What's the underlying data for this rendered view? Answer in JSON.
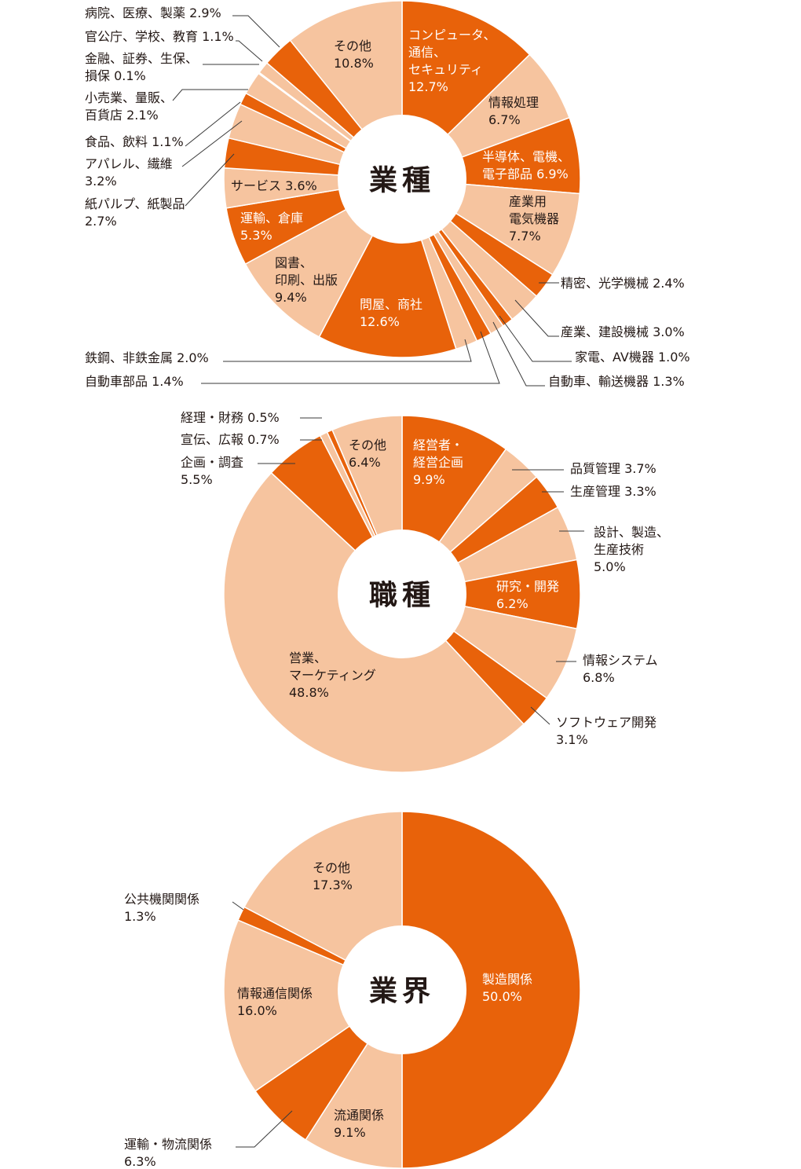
{
  "colors": {
    "dark": "#E8620A",
    "light": "#F6C49F",
    "text_dark": "#231815",
    "text_light": "#ffffff",
    "line": "#3a3a3a"
  },
  "chart_data": [
    {
      "type": "pie",
      "donut": true,
      "title": "業種",
      "start": "top",
      "direction": "clockwise",
      "slices": [
        {
          "label": "コンピュータ、通信、セキュリティ",
          "value": 12.7,
          "shade": "dark",
          "lines": [
            "コンピュータ、",
            "通信、",
            "セキュリティ",
            "12.7%"
          ]
        },
        {
          "label": "情報処理",
          "value": 6.7,
          "shade": "light",
          "lines": [
            "情報処理",
            "6.7%"
          ]
        },
        {
          "label": "半導体、電機、電子部品",
          "value": 6.9,
          "shade": "dark",
          "lines": [
            "半導体、電機、",
            "電子部品 6.9%"
          ]
        },
        {
          "label": "産業用電気機器",
          "value": 7.7,
          "shade": "light",
          "lines": [
            "産業用",
            "電気機器",
            "7.7%"
          ]
        },
        {
          "label": "精密、光学機械",
          "value": 2.4,
          "shade": "dark",
          "lines": [
            "精密、光学機械 2.4%"
          ]
        },
        {
          "label": "産業、建設機械",
          "value": 3.0,
          "shade": "light",
          "lines": [
            "産業、建設機械 3.0%"
          ]
        },
        {
          "label": "家電、AV機器",
          "value": 1.0,
          "shade": "dark",
          "lines": [
            "家電、AV機器 1.0%"
          ]
        },
        {
          "label": "自動車、輸送機器",
          "value": 1.3,
          "shade": "light",
          "lines": [
            "自動車、輸送機器 1.3%"
          ]
        },
        {
          "label": "自動車部品",
          "value": 1.4,
          "shade": "dark",
          "lines": [
            "自動車部品 1.4%"
          ]
        },
        {
          "label": "鉄鋼、非鉄金属",
          "value": 2.0,
          "shade": "light",
          "lines": [
            "鉄鋼、非鉄金属 2.0%"
          ]
        },
        {
          "label": "問屋、商社",
          "value": 12.6,
          "shade": "dark",
          "lines": [
            "問屋、商社",
            "12.6%"
          ]
        },
        {
          "label": "図書、印刷、出版",
          "value": 9.4,
          "shade": "light",
          "lines": [
            "図書、",
            "印刷、出版",
            "9.4%"
          ]
        },
        {
          "label": "運輸、倉庫",
          "value": 5.3,
          "shade": "dark",
          "lines": [
            "運輸、倉庫",
            "5.3%"
          ]
        },
        {
          "label": "サービス",
          "value": 3.6,
          "shade": "light",
          "lines": [
            "サービス 3.6%"
          ]
        },
        {
          "label": "紙パルプ、紙製品",
          "value": 2.7,
          "shade": "dark",
          "lines": [
            "紙パルプ、紙製品",
            "2.7%"
          ]
        },
        {
          "label": "アパレル、繊維",
          "value": 3.2,
          "shade": "light",
          "lines": [
            "アパレル、繊維",
            "3.2%"
          ]
        },
        {
          "label": "食品、飲料",
          "value": 1.1,
          "shade": "dark",
          "lines": [
            "食品、飲料 1.1%"
          ]
        },
        {
          "label": "小売業、量販、百貨店",
          "value": 2.1,
          "shade": "light",
          "lines": [
            "小売業、量販、",
            "百貨店 2.1%"
          ]
        },
        {
          "label": "金融、証券、生保、損保",
          "value": 0.1,
          "shade": "dark",
          "lines": [
            "金融、証券、生保、",
            "損保 0.1%"
          ]
        },
        {
          "label": "官公庁、学校、教育",
          "value": 1.1,
          "shade": "light",
          "lines": [
            "官公庁、学校、教育 1.1%"
          ]
        },
        {
          "label": "病院、医療、製薬",
          "value": 2.9,
          "shade": "dark",
          "lines": [
            "病院、医療、製薬 2.9%"
          ]
        },
        {
          "label": "その他",
          "value": 10.8,
          "shade": "light",
          "lines": [
            "その他",
            "10.8%"
          ]
        }
      ]
    },
    {
      "type": "pie",
      "donut": true,
      "title": "職種",
      "start": "top",
      "direction": "clockwise",
      "slices": [
        {
          "label": "経営者・経営企画",
          "value": 9.9,
          "shade": "dark",
          "lines": [
            "経営者・",
            "経営企画",
            "9.9%"
          ]
        },
        {
          "label": "品質管理",
          "value": 3.7,
          "shade": "light",
          "lines": [
            "品質管理  3.7%"
          ]
        },
        {
          "label": "生産管理",
          "value": 3.3,
          "shade": "dark",
          "lines": [
            "生産管理  3.3%"
          ]
        },
        {
          "label": "設計、製造、生産技術",
          "value": 5.0,
          "shade": "light",
          "lines": [
            "設計、製造、",
            "生産技術",
            "5.0%"
          ]
        },
        {
          "label": "研究・開発",
          "value": 6.2,
          "shade": "dark",
          "lines": [
            "研究・開発",
            "6.2%"
          ]
        },
        {
          "label": "情報システム",
          "value": 6.8,
          "shade": "light",
          "lines": [
            "情報システム",
            "6.8%"
          ]
        },
        {
          "label": "ソフトウェア開発",
          "value": 3.1,
          "shade": "dark",
          "lines": [
            "ソフトウェア開発",
            "3.1%"
          ]
        },
        {
          "label": "営業、マーケティング",
          "value": 48.8,
          "shade": "light",
          "lines": [
            "営業、",
            "マーケティング",
            "48.8%"
          ]
        },
        {
          "label": "企画・調査",
          "value": 5.5,
          "shade": "dark",
          "lines": [
            "企画・調査",
            "5.5%"
          ]
        },
        {
          "label": "宣伝、広報",
          "value": 0.7,
          "shade": "light",
          "lines": [
            "宣伝、広報  0.7%"
          ]
        },
        {
          "label": "経理・財務",
          "value": 0.5,
          "shade": "dark",
          "lines": [
            "経理・財務  0.5%"
          ]
        },
        {
          "label": "その他",
          "value": 6.4,
          "shade": "light",
          "lines": [
            "その他",
            "6.4%"
          ]
        }
      ]
    },
    {
      "type": "pie",
      "donut": true,
      "title": "業界",
      "start": "top",
      "direction": "clockwise",
      "slices": [
        {
          "label": "製造関係",
          "value": 50.0,
          "shade": "dark",
          "lines": [
            "製造関係",
            "50.0%"
          ]
        },
        {
          "label": "流通関係",
          "value": 9.1,
          "shade": "light",
          "lines": [
            "流通関係",
            "9.1%"
          ]
        },
        {
          "label": "運輸・物流関係",
          "value": 6.3,
          "shade": "dark",
          "lines": [
            "運輸・物流関係",
            "6.3%"
          ]
        },
        {
          "label": "情報通信関係",
          "value": 16.0,
          "shade": "light",
          "lines": [
            "情報通信関係",
            "16.0%"
          ]
        },
        {
          "label": "公共機関関係",
          "value": 1.3,
          "shade": "dark",
          "lines": [
            "公共機関関係",
            "1.3%"
          ]
        },
        {
          "label": "その他",
          "value": 17.3,
          "shade": "light",
          "lines": [
            "その他",
            "17.3%"
          ]
        }
      ]
    }
  ]
}
